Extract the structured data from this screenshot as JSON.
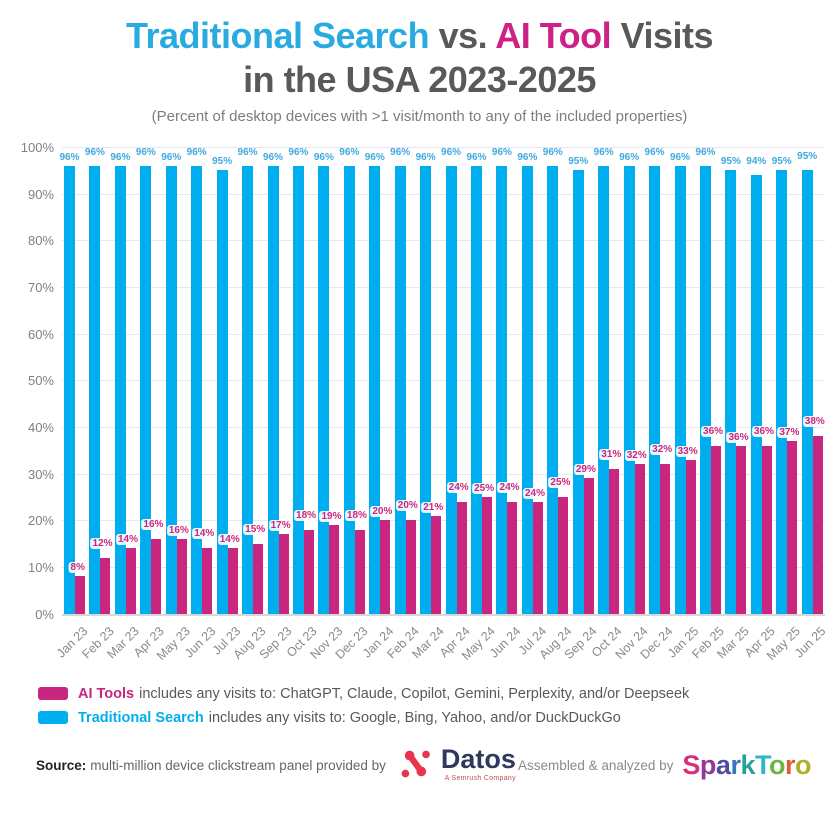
{
  "title": {
    "part1": "Traditional Search",
    "part2": " vs. ",
    "part3": "AI Tool",
    "part4": " Visits",
    "line2": "in the USA 2023-2025"
  },
  "subtitle": "(Percent of desktop devices with >1 visit/month to any of the included properties)",
  "chart_data": {
    "type": "bar",
    "title": "Traditional Search vs. AI Tool Visits in the USA 2023-2025",
    "subtitle": "(Percent of desktop devices with >1 visit/month to any of the included properties)",
    "categories": [
      "Jan 23",
      "Feb 23",
      "Mar 23",
      "Apr 23",
      "May 23",
      "Jun 23",
      "Jul 23",
      "Aug 23",
      "Sep 23",
      "Oct 23",
      "Nov 23",
      "Dec 23",
      "Jan 24",
      "Feb 24",
      "Mar 24",
      "Apr 24",
      "May 24",
      "Jun 24",
      "Jul 24",
      "Aug 24",
      "Sep 24",
      "Oct 24",
      "Nov 24",
      "Dec 24",
      "Jan 25",
      "Feb 25",
      "Mar 25",
      "Apr 25",
      "May 25",
      "Jun 25"
    ],
    "series": [
      {
        "name": "Traditional Search",
        "color": "#00AEEF",
        "values": [
          96,
          96,
          96,
          96,
          96,
          96,
          95,
          96,
          96,
          96,
          96,
          96,
          96,
          96,
          96,
          96,
          96,
          96,
          96,
          96,
          95,
          96,
          96,
          96,
          96,
          96,
          95,
          94,
          95,
          95
        ]
      },
      {
        "name": "AI Tools",
        "color": "#C9267F",
        "values": [
          8,
          12,
          14,
          16,
          16,
          14,
          14,
          15,
          17,
          18,
          19,
          18,
          20,
          20,
          21,
          24,
          25,
          24,
          24,
          25,
          29,
          31,
          32,
          32,
          33,
          36,
          36,
          36,
          37,
          38
        ]
      }
    ],
    "y_ticks": [
      "100%",
      "90%",
      "80%",
      "70%",
      "60%",
      "50%",
      "40%",
      "30%",
      "20%",
      "10%",
      "0%"
    ],
    "ylim": [
      0,
      100
    ],
    "grid": true,
    "value_label_suffix": "%",
    "legend_position": "bottom"
  },
  "legend": [
    {
      "name": "AI Tools",
      "color": "#C9267F",
      "description": "includes any visits to: ChatGPT, Claude, Copilot, Gemini, Perplexity, and/or Deepseek"
    },
    {
      "name": "Traditional Search",
      "color": "#00AEEF",
      "description": "includes any visits to: Google, Bing, Yahoo, and/or DuckDuckGo"
    }
  ],
  "footer": {
    "source_label": "Source:",
    "source_text": "multi-million device clickstream panel provided by",
    "datos_name": "Datos",
    "datos_tagline": "A Semrush Company",
    "datos_icon_color": "#E8354D",
    "assembled_text": "Assembled & analyzed by",
    "sparktoro_letters": [
      {
        "char": "S",
        "color": "#D5307E"
      },
      {
        "char": "p",
        "color": "#91399B"
      },
      {
        "char": "a",
        "color": "#4D4D9F"
      },
      {
        "char": "r",
        "color": "#3B74BE"
      },
      {
        "char": "k",
        "color": "#2AA198"
      },
      {
        "char": "T",
        "color": "#30B4C8"
      },
      {
        "char": "o",
        "color": "#6FB440"
      },
      {
        "char": "r",
        "color": "#E05A3A"
      },
      {
        "char": "o",
        "color": "#AFAF2E"
      }
    ]
  }
}
